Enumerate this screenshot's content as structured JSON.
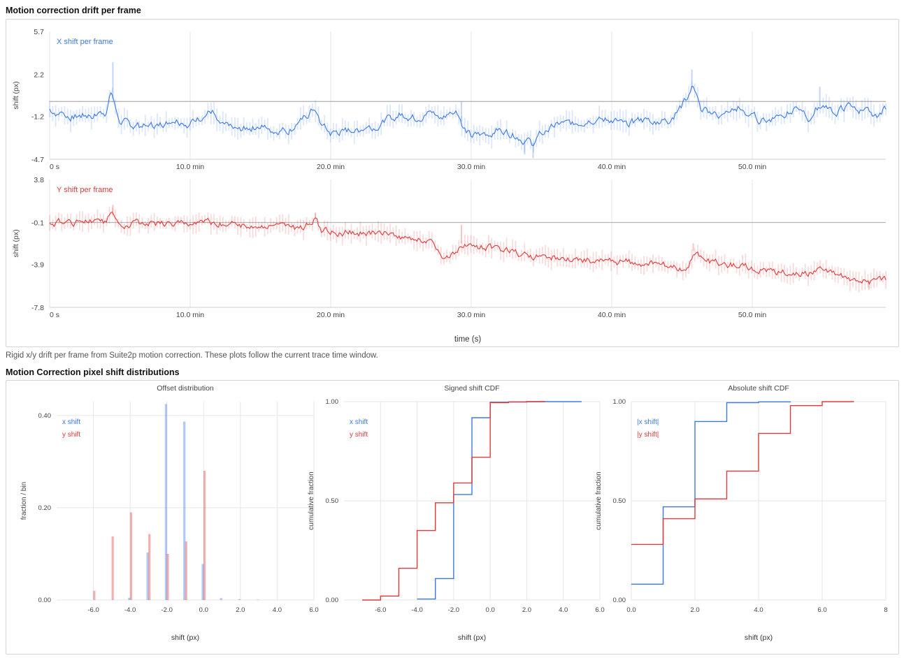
{
  "drift_section": {
    "title": "Motion correction drift per frame",
    "caption": "Rigid x/y drift per frame from Suite2p motion correction. These plots follow the current trace time window.",
    "shared_xlabel": "time (s)"
  },
  "dist_section": {
    "title": "Motion Correction pixel shift distributions"
  },
  "colors": {
    "x": "#3b78e7",
    "y": "#e03a3a",
    "zero_line": "#b5b5b5",
    "grid": "#e6e6e6"
  },
  "chart_data": [
    {
      "type": "line",
      "id": "x-drift",
      "series": [
        {
          "name": "X shift per frame"
        }
      ],
      "ylabel": "shift (px)",
      "xlabel": "",
      "ylim": [
        -4.7,
        5.7
      ],
      "yticks": [
        -4.7,
        -1.2,
        2.2,
        5.7
      ],
      "ytick_labels": [
        "-4.7",
        "-1.2",
        "2.2",
        "5.7"
      ],
      "xlim": [
        0,
        59.5
      ],
      "xticks": [
        0,
        10,
        20,
        30,
        40,
        50
      ],
      "xtick_labels": [
        "0 s",
        "10.0 min",
        "20.0 min",
        "30.0 min",
        "40.0 min",
        "50.0 min"
      ],
      "x_unit": "min",
      "zero_line": 0,
      "points": [
        [
          0,
          -0.6
        ],
        [
          0.5,
          -0.9
        ],
        [
          1,
          -1.0
        ],
        [
          1.5,
          -1.2
        ],
        [
          2,
          -1.2
        ],
        [
          3,
          -1.1
        ],
        [
          4,
          -0.9
        ],
        [
          4.4,
          0.8
        ],
        [
          4.6,
          -0.3
        ],
        [
          5,
          -1.5
        ],
        [
          6,
          -2.0
        ],
        [
          7,
          -2.1
        ],
        [
          8,
          -1.8
        ],
        [
          9,
          -1.5
        ],
        [
          10,
          -1.8
        ],
        [
          10.5,
          -1.5
        ],
        [
          11,
          -1.2
        ],
        [
          11.6,
          -0.7
        ],
        [
          12,
          -1.8
        ],
        [
          13,
          -2.3
        ],
        [
          14,
          -2.2
        ],
        [
          15,
          -2.0
        ],
        [
          16,
          -2.4
        ],
        [
          17,
          -2.3
        ],
        [
          18,
          -1.5
        ],
        [
          18.9,
          -0.5
        ],
        [
          19.3,
          -1.9
        ],
        [
          20,
          -2.6
        ],
        [
          21,
          -2.4
        ],
        [
          22,
          -2.3
        ],
        [
          23,
          -2.0
        ],
        [
          24,
          -1.5
        ],
        [
          25,
          -1.0
        ],
        [
          26,
          -1.3
        ],
        [
          27,
          -1.0
        ],
        [
          28,
          -1.2
        ],
        [
          29,
          -0.8
        ],
        [
          29.4,
          -1.9
        ],
        [
          30,
          -2.9
        ],
        [
          31,
          -2.6
        ],
        [
          32,
          -2.2
        ],
        [
          33,
          -2.7
        ],
        [
          34,
          -3.2
        ],
        [
          34.3,
          -3.5
        ],
        [
          35,
          -2.6
        ],
        [
          36,
          -2.0
        ],
        [
          37,
          -1.8
        ],
        [
          38,
          -1.6
        ],
        [
          39,
          -1.4
        ],
        [
          40,
          -1.5
        ],
        [
          41,
          -1.8
        ],
        [
          42,
          -1.6
        ],
        [
          43,
          -1.5
        ],
        [
          44,
          -1.6
        ],
        [
          45,
          -0.4
        ],
        [
          45.8,
          1.3
        ],
        [
          46.3,
          -0.6
        ],
        [
          47,
          -1.0
        ],
        [
          48,
          -1.2
        ],
        [
          49,
          -0.5
        ],
        [
          50,
          -1.3
        ],
        [
          51,
          -1.6
        ],
        [
          52,
          -0.9
        ],
        [
          53,
          -0.8
        ],
        [
          54,
          -1.4
        ],
        [
          54.7,
          -0.4
        ],
        [
          55.3,
          -0.3
        ],
        [
          56,
          -0.8
        ],
        [
          57,
          -0.3
        ],
        [
          58,
          -0.8
        ],
        [
          59,
          -1.1
        ],
        [
          59.5,
          -0.6
        ]
      ],
      "extremes": [
        [
          4.5,
          3.2
        ],
        [
          29.3,
          0.0
        ],
        [
          33.8,
          -4.3
        ],
        [
          34.4,
          -4.6
        ],
        [
          45.7,
          2.6
        ],
        [
          54.8,
          1.2
        ]
      ]
    },
    {
      "type": "line",
      "id": "y-drift",
      "series": [
        {
          "name": "Y shift per frame"
        }
      ],
      "ylabel": "shift (px)",
      "xlabel": "",
      "ylim": [
        -7.8,
        3.8
      ],
      "yticks": [
        -7.8,
        -3.9,
        -0.1,
        3.8
      ],
      "ytick_labels": [
        "-7.8",
        "-3.9",
        "-0.1",
        "3.8"
      ],
      "xlim": [
        0,
        59.5
      ],
      "xticks": [
        0,
        10,
        20,
        30,
        40,
        50
      ],
      "xtick_labels": [
        "0 s",
        "10.0 min",
        "20.0 min",
        "30.0 min",
        "40.0 min",
        "50.0 min"
      ],
      "x_unit": "min",
      "zero_line": -0.1,
      "points": [
        [
          0,
          -0.1
        ],
        [
          2,
          -0.1
        ],
        [
          4,
          -0.1
        ],
        [
          4.4,
          1.0
        ],
        [
          4.7,
          -0.2
        ],
        [
          6,
          -0.2
        ],
        [
          8,
          -0.2
        ],
        [
          10,
          -0.2
        ],
        [
          12,
          -0.2
        ],
        [
          14,
          -0.3
        ],
        [
          16,
          -0.3
        ],
        [
          17,
          -0.5
        ],
        [
          18,
          -0.7
        ],
        [
          18.9,
          0.3
        ],
        [
          19.3,
          -0.8
        ],
        [
          20,
          -1.0
        ],
        [
          22,
          -1.0
        ],
        [
          24,
          -1.1
        ],
        [
          25.5,
          -1.5
        ],
        [
          27,
          -1.6
        ],
        [
          27.6,
          -2.8
        ],
        [
          28,
          -3.5
        ],
        [
          28.7,
          -3.0
        ],
        [
          29.3,
          -2.0
        ],
        [
          30,
          -2.5
        ],
        [
          31,
          -2.4
        ],
        [
          32,
          -2.6
        ],
        [
          33,
          -2.9
        ],
        [
          34,
          -3.1
        ],
        [
          35,
          -3.2
        ],
        [
          36,
          -3.3
        ],
        [
          37,
          -3.4
        ],
        [
          38,
          -3.5
        ],
        [
          40,
          -3.6
        ],
        [
          42,
          -3.8
        ],
        [
          44,
          -4.0
        ],
        [
          45.4,
          -4.4
        ],
        [
          45.8,
          -2.7
        ],
        [
          46.4,
          -3.4
        ],
        [
          47,
          -3.7
        ],
        [
          49,
          -4.0
        ],
        [
          50,
          -4.2
        ],
        [
          52,
          -4.6
        ],
        [
          54,
          -4.7
        ],
        [
          54.7,
          -4.1
        ],
        [
          55.3,
          -4.6
        ],
        [
          57,
          -5.1
        ],
        [
          58.4,
          -5.4
        ],
        [
          59,
          -5.1
        ],
        [
          59.5,
          -5.2
        ]
      ],
      "extremes": [
        [
          4.5,
          1.5
        ],
        [
          18.9,
          0.8
        ],
        [
          29.3,
          -0.3
        ],
        [
          45.8,
          -2.0
        ],
        [
          58.3,
          -6.2
        ]
      ]
    },
    {
      "type": "bar",
      "id": "offset-distribution",
      "title": "Offset distribution",
      "xlabel": "shift (px)",
      "ylabel": "fraction / bin",
      "xlim": [
        -8,
        6
      ],
      "xticks": [
        -6,
        -4,
        -2,
        0,
        2,
        4,
        6
      ],
      "xtick_labels": [
        "-6.0",
        "-4.0",
        "-2.0",
        "0.0",
        "2.0",
        "4.0",
        "6.0"
      ],
      "ylim": [
        0,
        0.43
      ],
      "yticks": [
        0,
        0.2,
        0.4
      ],
      "ytick_labels": [
        "0.00",
        "0.20",
        "0.40"
      ],
      "series": [
        {
          "name": "x shift",
          "x": [
            -4,
            -3,
            -2,
            -1,
            0,
            1,
            2,
            3
          ],
          "values": [
            0.005,
            0.103,
            0.425,
            0.387,
            0.078,
            0.004,
            0.002,
            0.001
          ]
        },
        {
          "name": "y shift",
          "x": [
            -6,
            -5,
            -4,
            -3,
            -2,
            -1,
            0
          ],
          "values": [
            0.02,
            0.138,
            0.19,
            0.143,
            0.1,
            0.127,
            0.28
          ]
        }
      ]
    },
    {
      "type": "line",
      "id": "signed-shift-cdf",
      "title": "Signed shift CDF",
      "xlabel": "shift (px)",
      "ylabel": "cumulative fraction",
      "xlim": [
        -8,
        6
      ],
      "xticks": [
        -6,
        -4,
        -2,
        0,
        2,
        4,
        6
      ],
      "xtick_labels": [
        "-6.0",
        "-4.0",
        "-2.0",
        "0.0",
        "2.0",
        "4.0",
        "6.0"
      ],
      "ylim": [
        0,
        1
      ],
      "yticks": [
        0,
        0.5,
        1
      ],
      "ytick_labels": [
        "0.00",
        "0.50",
        "1.00"
      ],
      "series": [
        {
          "name": "x shift",
          "x": [
            -4,
            -3,
            -2,
            -1,
            0,
            1,
            2,
            3,
            4,
            5
          ],
          "values": [
            0.005,
            0.108,
            0.532,
            0.919,
            0.997,
            0.999,
            1.0,
            1.0,
            1.0,
            1.0
          ]
        },
        {
          "name": "y shift",
          "x": [
            -7,
            -6,
            -5,
            -4,
            -3,
            -2,
            -1,
            0,
            1,
            2,
            3
          ],
          "values": [
            0.0,
            0.02,
            0.16,
            0.35,
            0.49,
            0.59,
            0.72,
            0.995,
            0.998,
            1.0,
            1.0
          ]
        }
      ]
    },
    {
      "type": "line",
      "id": "absolute-shift-cdf",
      "title": "Absolute shift CDF",
      "xlabel": "shift (px)",
      "ylabel": "cumulative fraction",
      "xlim": [
        0,
        8
      ],
      "xticks": [
        0,
        2,
        4,
        6,
        8
      ],
      "xtick_labels": [
        "0.0",
        "2.0",
        "4.0",
        "6.0",
        "8"
      ],
      "ylim": [
        0,
        1
      ],
      "yticks": [
        0,
        0.5,
        1
      ],
      "ytick_labels": [
        "0.00",
        "0.50",
        "1.00"
      ],
      "series": [
        {
          "name": "|x shift|",
          "x": [
            0,
            1,
            2,
            3,
            4,
            5
          ],
          "values": [
            0.08,
            0.47,
            0.9,
            0.995,
            0.999,
            1.0
          ]
        },
        {
          "name": "|y shift|",
          "x": [
            0,
            1,
            2,
            3,
            4,
            5,
            6,
            7
          ],
          "values": [
            0.28,
            0.41,
            0.51,
            0.65,
            0.84,
            0.98,
            1.0,
            1.0
          ]
        }
      ]
    }
  ]
}
